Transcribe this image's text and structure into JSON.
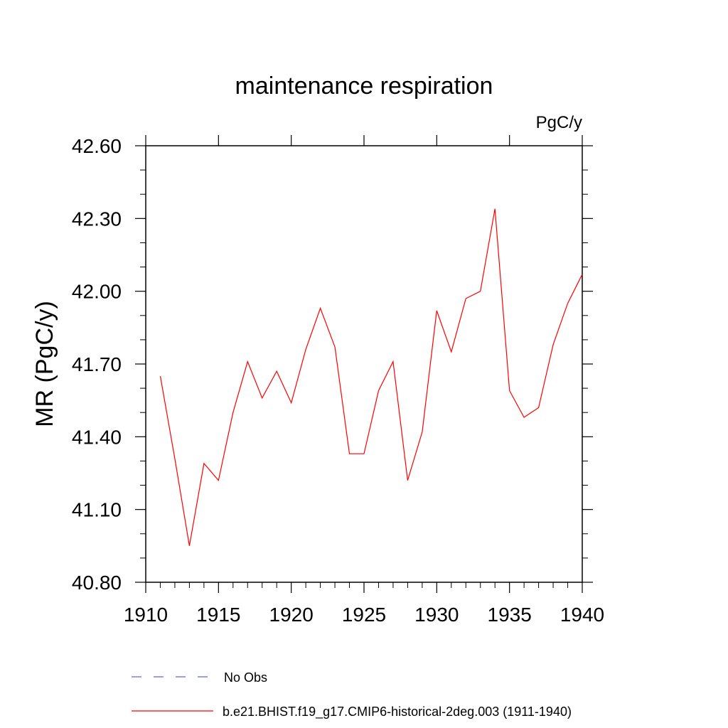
{
  "chart_data": {
    "type": "line",
    "title": "maintenance respiration",
    "units_label": "PgC/y",
    "ylabel": "MR  (PgC/y)",
    "xlabel": "",
    "xlim": [
      1910,
      1940
    ],
    "ylim": [
      40.8,
      42.6
    ],
    "x_ticks": [
      "1910",
      "1915",
      "1920",
      "1925",
      "1930",
      "1935",
      "1940"
    ],
    "y_ticks": [
      "40.80",
      "41.10",
      "41.40",
      "41.70",
      "42.00",
      "42.30",
      "42.60"
    ],
    "grid": false,
    "legend_placement": "bottom",
    "series": [
      {
        "name": "No Obs",
        "style": "dashed",
        "color": "#6666cc",
        "x": [],
        "values": []
      },
      {
        "name": "b.e21.BHIST.f19_g17.CMIP6-historical-2deg.003 (1911-1940)",
        "style": "solid",
        "color": "#ff0000",
        "x": [
          1911,
          1912,
          1913,
          1914,
          1915,
          1916,
          1917,
          1918,
          1919,
          1920,
          1921,
          1922,
          1923,
          1924,
          1925,
          1926,
          1927,
          1928,
          1929,
          1930,
          1931,
          1932,
          1933,
          1934,
          1935,
          1936,
          1937,
          1938,
          1939,
          1940
        ],
        "values": [
          41.65,
          41.31,
          40.95,
          41.29,
          41.22,
          41.5,
          41.71,
          41.56,
          41.67,
          41.54,
          41.76,
          41.93,
          41.77,
          41.33,
          41.33,
          41.59,
          41.71,
          41.22,
          41.42,
          41.92,
          41.75,
          41.97,
          42.0,
          42.34,
          41.59,
          41.48,
          41.52,
          41.78,
          41.95,
          42.07
        ]
      }
    ]
  }
}
